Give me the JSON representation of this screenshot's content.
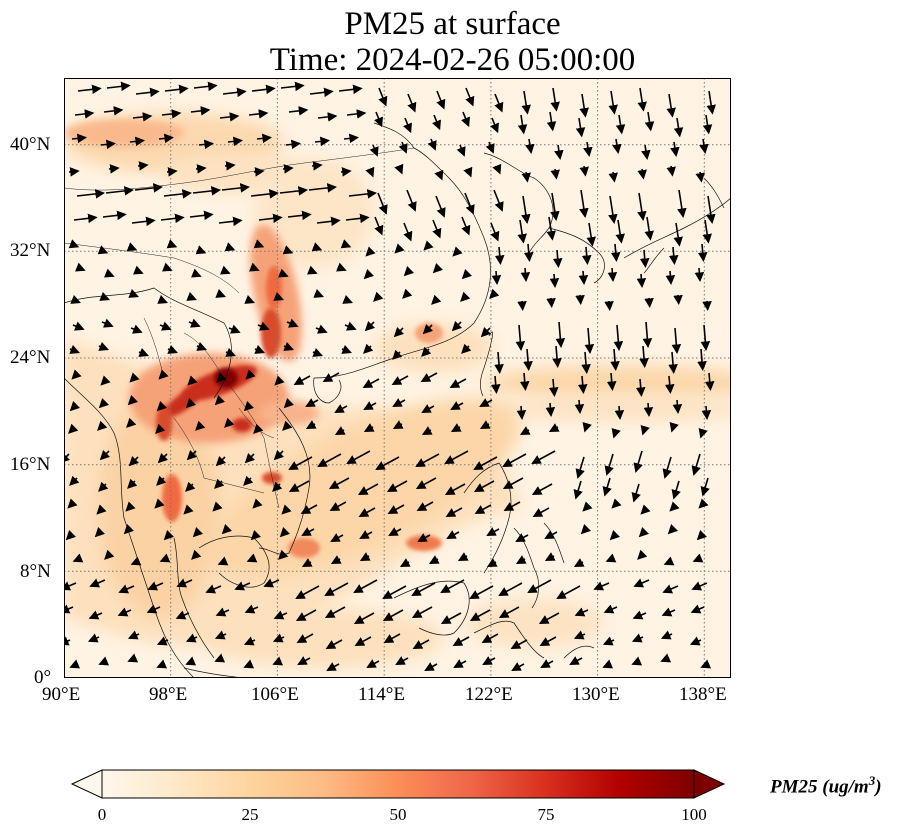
{
  "title": {
    "line1": "PM25 at surface",
    "line2": "Time: 2024-02-26 05:00:00"
  },
  "map": {
    "projection": "PlateCarree",
    "extent": {
      "lon_min": 90,
      "lon_max": 140,
      "lat_min": 0,
      "lat_max": 45
    },
    "gridlines": "dotted",
    "lon_ticks": [
      "90°E",
      "98°E",
      "106°E",
      "114°E",
      "122°E",
      "130°E",
      "138°E"
    ],
    "lat_ticks": [
      "0°",
      "8°N",
      "16°N",
      "24°N",
      "32°N",
      "40°N"
    ]
  },
  "colorbar": {
    "label_text": "PM25 (ug/m",
    "label_superscript": "3",
    "label_close": ")",
    "min": 0,
    "max": 100,
    "ticks": [
      "0",
      "25",
      "50",
      "75",
      "100"
    ],
    "colormap": "OrRd",
    "extend": "both"
  },
  "palette": {
    "low": "#fff7ec",
    "mid": "#fdd49e",
    "mid2": "#fc8d59",
    "high": "#d7301f",
    "max": "#7f0000"
  }
}
